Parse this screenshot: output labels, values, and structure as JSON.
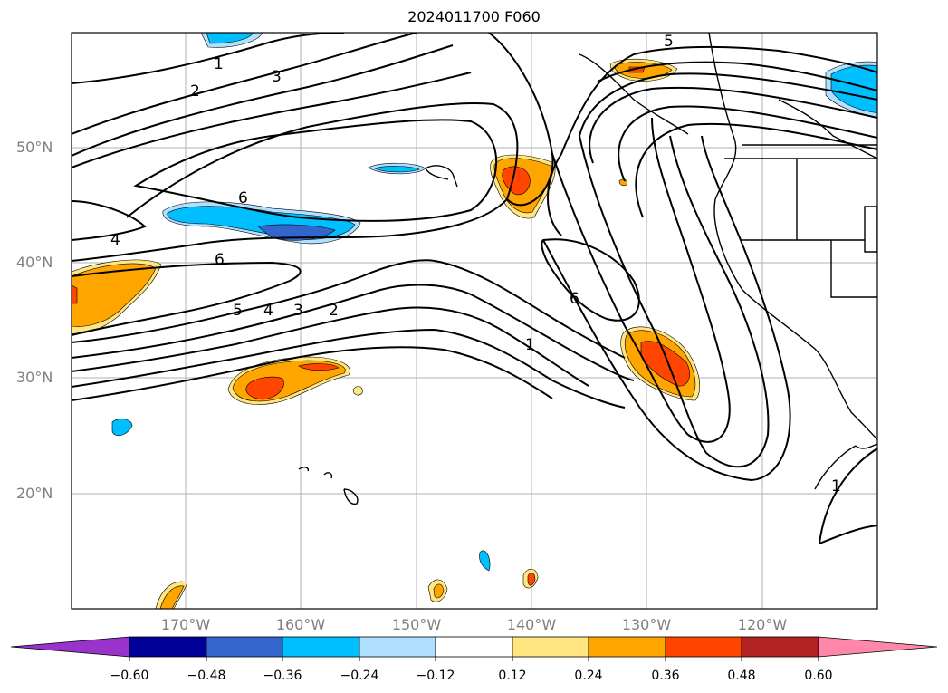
{
  "title": "2024011700 F060",
  "lat_labels": [
    "50°N",
    "40°N",
    "30°N",
    "20°N"
  ],
  "lon_labels": [
    "170°W",
    "160°W",
    "150°W",
    "140°W",
    "130°W",
    "120°W"
  ],
  "contour_labels": [
    "1",
    "2",
    "3",
    "4",
    "5",
    "6",
    "6",
    "4",
    "6",
    "5",
    "4",
    "3",
    "2",
    "1",
    "6",
    "1"
  ],
  "colorbar": {
    "colors": [
      "#9933cc",
      "#000099",
      "#3366cc",
      "#00bfff",
      "#b0e0ff",
      "#ffffff",
      "#ffe680",
      "#ffa500",
      "#ff4500",
      "#b22222",
      "#ff88aa"
    ],
    "ticks": [
      "−0.60",
      "−0.48",
      "−0.36",
      "−0.24",
      "−0.12",
      "0.12",
      "0.24",
      "0.36",
      "0.48",
      "0.60"
    ]
  }
}
